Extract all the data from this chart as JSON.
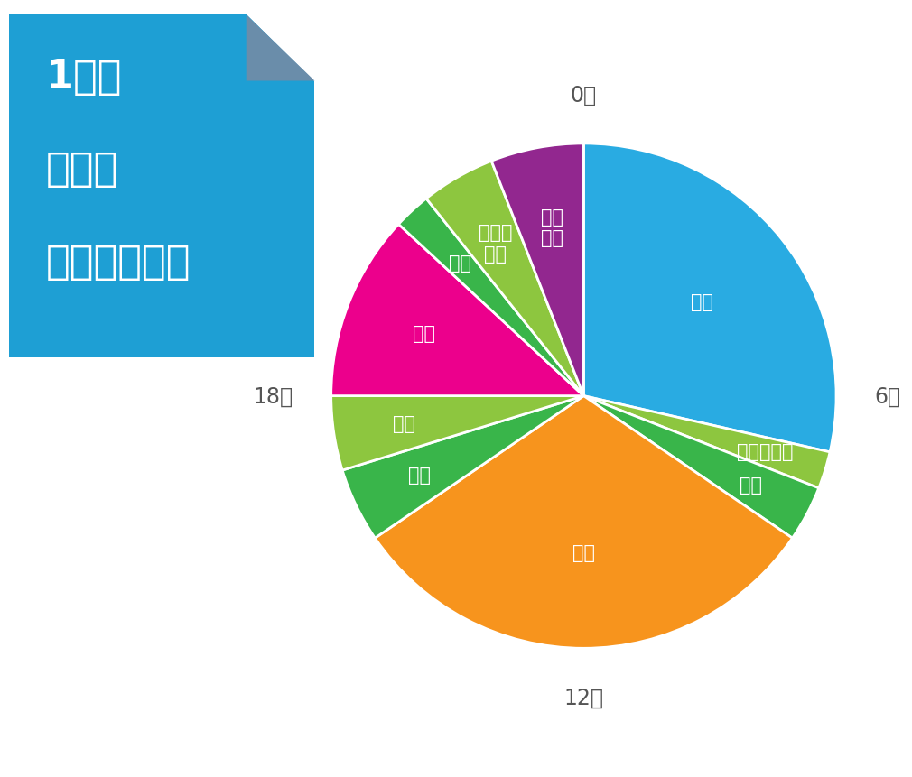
{
  "title_lines": [
    "1日の",
    "タイム",
    "スケジュール"
  ],
  "title_bg_color": "#1e9fd4",
  "segments": [
    {
      "label": "睡眠",
      "hours": 6.0,
      "color": "#29abe2",
      "label_r": 0.6
    },
    {
      "label": "起床・準備",
      "hours": 0.5,
      "color": "#8dc63f",
      "label_r": 0.75
    },
    {
      "label": "通勤",
      "hours": 0.75,
      "color": "#39b54a",
      "label_r": 0.75
    },
    {
      "label": "仕事",
      "hours": 6.5,
      "color": "#f7941d",
      "label_r": 0.62
    },
    {
      "label": "通学",
      "hours": 1.0,
      "color": "#39b54a",
      "label_r": 0.72
    },
    {
      "label": "食事",
      "hours": 1.0,
      "color": "#8dc63f",
      "label_r": 0.72
    },
    {
      "label": "授業",
      "hours": 2.5,
      "color": "#ec008c",
      "label_r": 0.68
    },
    {
      "label": "移動",
      "hours": 0.5,
      "color": "#39b54a",
      "label_r": 0.72
    },
    {
      "label": "就寝前\n準備",
      "hours": 1.0,
      "color": "#8dc63f",
      "label_r": 0.7
    },
    {
      "label": "復習\nなど",
      "hours": 1.25,
      "color": "#92278f",
      "label_r": 0.68
    }
  ],
  "bg_color": "#ffffff",
  "label_color": "#ffffff",
  "label_fontsize": 15,
  "clock_label_color": "#555555",
  "clock_label_fontsize": 17,
  "fold_color": "#6a8daa"
}
